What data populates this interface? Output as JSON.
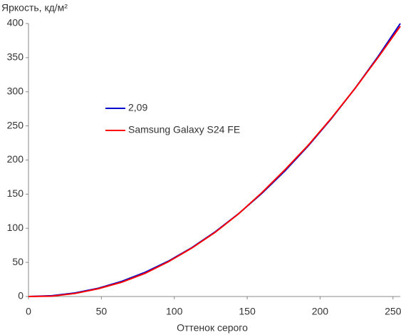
{
  "chart_data": {
    "type": "line",
    "y_label": "Яркость, кд/м²",
    "x_label": "Оттенок серого",
    "x": [
      0,
      16,
      32,
      48,
      64,
      80,
      96,
      112,
      128,
      144,
      160,
      176,
      192,
      208,
      224,
      240,
      255
    ],
    "series": [
      {
        "name": "2,09",
        "color": "#0000cc",
        "values": [
          0,
          1.2,
          5.2,
          12.2,
          22.2,
          35.5,
          51.9,
          71.6,
          94.7,
          121.2,
          151.0,
          184.3,
          221.0,
          261.3,
          305.1,
          352.4,
          400
        ]
      },
      {
        "name": "Samsung Galaxy S24 FE",
        "color": "#ff0000",
        "values": [
          0,
          0.5,
          4.5,
          11.5,
          21,
          34,
          51,
          71,
          94,
          121,
          152,
          186,
          222,
          262,
          305,
          351,
          396
        ]
      }
    ],
    "xlim": [
      0,
      255
    ],
    "xticks": [
      0,
      50,
      100,
      150,
      200,
      250
    ],
    "ylim": [
      0,
      400
    ],
    "yticks": [
      0,
      50,
      100,
      150,
      200,
      250,
      300,
      350,
      400
    ],
    "grid": false,
    "legend": "left"
  }
}
